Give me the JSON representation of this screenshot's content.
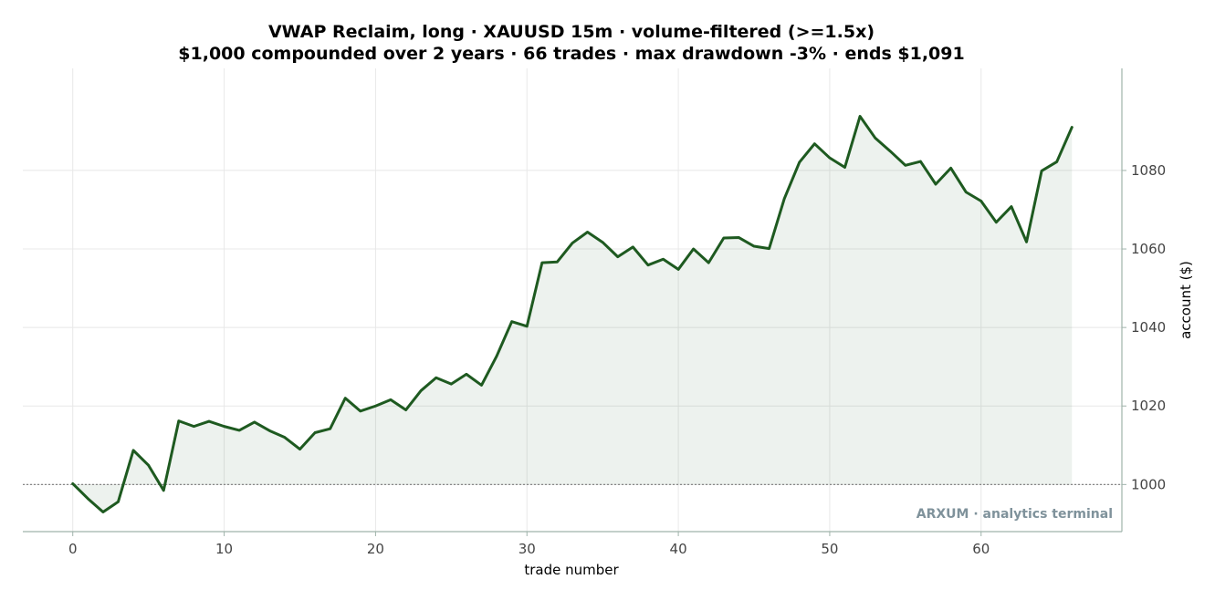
{
  "chart_data": {
    "type": "area",
    "title": "VWAP Reclaim, long · XAUUSD 15m · volume-filtered (>=1.5x)",
    "subtitle": "$1,000 compounded over 2 years · 66 trades · max drawdown -3% · ends $1,091",
    "xlabel": "trade number",
    "ylabel": "account ($)",
    "xlim": [
      -3.3,
      69.3
    ],
    "ylim": [
      988,
      1106
    ],
    "xticks": [
      0,
      10,
      20,
      30,
      40,
      50,
      60
    ],
    "yticks": [
      1000,
      1020,
      1040,
      1060,
      1080
    ],
    "baseline": 1000,
    "grid": true,
    "y_axis_side": "right",
    "colors": {
      "line": "#1e5a20",
      "fill": "#1e5a20",
      "baseline": "#888888",
      "axis": "#9fb3aa"
    },
    "watermark": "ARXUM · analytics terminal",
    "x": [
      0,
      1,
      2,
      3,
      4,
      5,
      6,
      7,
      8,
      9,
      10,
      11,
      12,
      13,
      14,
      15,
      16,
      17,
      18,
      19,
      20,
      21,
      22,
      23,
      24,
      25,
      26,
      27,
      28,
      29,
      30,
      31,
      32,
      33,
      34,
      35,
      36,
      37,
      38,
      39,
      40,
      41,
      42,
      43,
      44,
      45,
      46,
      47,
      48,
      49,
      50,
      51,
      52,
      53,
      54,
      55,
      56,
      57,
      58,
      59,
      60,
      61,
      62,
      63,
      64,
      65,
      66
    ],
    "series": [
      {
        "values": [
          1000.2,
          996.4,
          993.0,
          995.6,
          1008.7,
          1004.9,
          998.5,
          1016.2,
          1014.8,
          1016.1,
          1014.8,
          1013.8,
          1015.9,
          1013.7,
          1012.0,
          1009.0,
          1013.2,
          1014.2,
          1022.0,
          1018.7,
          1020.0,
          1021.6,
          1019.0,
          1023.9,
          1027.2,
          1025.6,
          1028.1,
          1025.3,
          1032.7,
          1041.5,
          1040.3,
          1056.5,
          1056.7,
          1061.5,
          1064.3,
          1061.7,
          1058.0,
          1060.5,
          1055.9,
          1057.4,
          1054.8,
          1060.0,
          1056.5,
          1062.8,
          1062.9,
          1060.7,
          1060.1,
          1072.8,
          1082.1,
          1086.8,
          1083.2,
          1080.8,
          1093.8,
          1088.3,
          1084.9,
          1081.3,
          1082.3,
          1076.5,
          1080.6,
          1074.5,
          1072.2,
          1066.8,
          1070.8,
          1061.8,
          1079.9,
          1082.2,
          1091.0
        ]
      }
    ]
  }
}
